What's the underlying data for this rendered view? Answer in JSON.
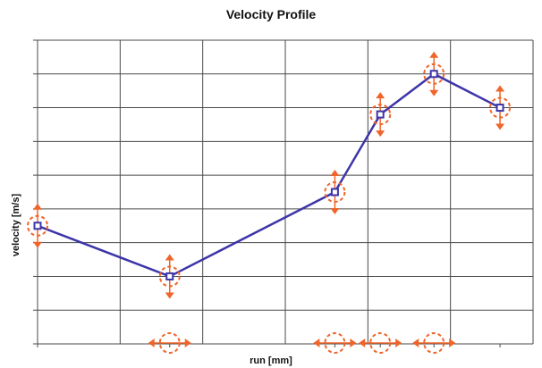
{
  "colors": {
    "line": "#3d35a8",
    "handle": "#f0642a",
    "grid": "#4a4a4a"
  },
  "icons": {
    "handle": "four-way-arrow-circle-icon",
    "x_handle": "horizontal-arrow-circle-icon"
  },
  "chart_data": {
    "type": "line",
    "title": "Velocity Profile",
    "xlabel": "run [mm]",
    "ylabel": "velocity [m/s]",
    "grid": true,
    "xlim": [
      0,
      6
    ],
    "ylim": [
      0,
      9
    ],
    "x_gridlines": [
      0,
      1,
      2,
      3,
      4,
      5,
      6
    ],
    "y_gridlines": [
      0,
      1,
      2,
      3,
      4,
      5,
      6,
      7,
      8,
      9
    ],
    "series": [
      {
        "x": [
          0,
          1.6,
          3.6,
          4.15,
          4.8,
          5.6
        ],
        "y": [
          3.5,
          2.0,
          4.5,
          6.8,
          8.0,
          7.0
        ]
      }
    ],
    "x_handles": [
      1.6,
      3.6,
      4.15,
      4.8
    ]
  }
}
